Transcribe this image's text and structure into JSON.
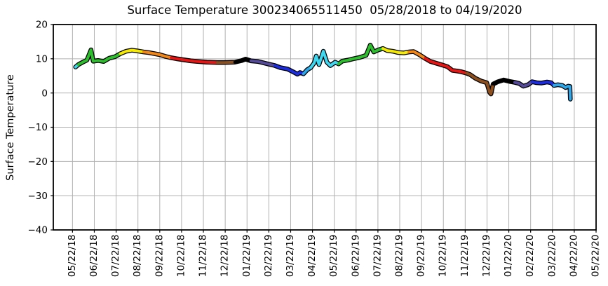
{
  "chart_data": {
    "type": "line",
    "title": "Surface Temperature 300234065511450  05/28/2018 to 04/19/2020",
    "ylabel": "Surface Temperature",
    "xlabel": "",
    "ylim": [
      -40,
      20
    ],
    "xlim_months": [
      -0.88,
      24
    ],
    "grid": true,
    "grid_color": "#b0b0b0",
    "y_tick_values": [
      20,
      10,
      0,
      -10,
      -20,
      -30,
      -40
    ],
    "y_tick_labels": [
      "20",
      "10",
      "0",
      "−10",
      "−20",
      "−30",
      "−40"
    ],
    "x_tick_labels": [
      "05/22/18",
      "06/22/18",
      "07/22/18",
      "08/22/18",
      "09/22/18",
      "10/22/18",
      "11/22/18",
      "12/22/18",
      "01/22/19",
      "02/22/19",
      "03/22/19",
      "04/22/19",
      "05/22/19",
      "06/22/19",
      "07/22/19",
      "08/22/19",
      "09/22/19",
      "10/22/19",
      "11/22/19",
      "12/22/19",
      "01/22/20",
      "02/22/20",
      "03/22/20",
      "04/22/20",
      "05/22/20"
    ],
    "x_unit": "months since 05/22/2018",
    "palette": [
      {
        "name": "cyan",
        "hex": "#3fd6ef"
      },
      {
        "name": "green",
        "hex": "#2dbf2d"
      },
      {
        "name": "yellow",
        "hex": "#f5ea00"
      },
      {
        "name": "orange",
        "hex": "#f28718"
      },
      {
        "name": "red",
        "hex": "#e81515"
      },
      {
        "name": "brown",
        "hex": "#8c4f1d"
      },
      {
        "name": "black",
        "hex": "#000000"
      },
      {
        "name": "dark-slate-blue",
        "hex": "#554a99"
      },
      {
        "name": "blue",
        "hex": "#1c2de0"
      },
      {
        "name": "sky-blue",
        "hex": "#2da7e8"
      }
    ],
    "series": [
      {
        "name": "surface-temperature",
        "outline_color": "#000000",
        "points": [
          [
            0.14,
            7.6,
            0
          ],
          [
            0.27,
            8.3,
            0
          ],
          [
            0.47,
            9.0,
            1
          ],
          [
            0.66,
            9.6,
            1
          ],
          [
            0.85,
            12.6,
            1
          ],
          [
            0.95,
            9.3,
            1
          ],
          [
            1.17,
            9.5,
            1
          ],
          [
            1.43,
            9.2,
            1
          ],
          [
            1.69,
            10.2,
            1
          ],
          [
            1.95,
            10.6,
            1
          ],
          [
            2.2,
            11.5,
            1
          ],
          [
            2.46,
            12.2,
            2
          ],
          [
            2.72,
            12.5,
            2
          ],
          [
            2.97,
            12.3,
            2
          ],
          [
            3.26,
            12.0,
            2
          ],
          [
            3.49,
            11.8,
            3
          ],
          [
            3.75,
            11.5,
            3
          ],
          [
            4.0,
            11.2,
            3
          ],
          [
            4.26,
            10.7,
            3
          ],
          [
            4.52,
            10.3,
            3
          ],
          [
            4.77,
            10.0,
            4
          ],
          [
            5.1,
            9.7,
            4
          ],
          [
            5.42,
            9.4,
            4
          ],
          [
            5.74,
            9.2,
            4
          ],
          [
            6.16,
            9.0,
            4
          ],
          [
            6.64,
            8.9,
            4
          ],
          [
            6.96,
            8.9,
            5
          ],
          [
            7.44,
            9.0,
            5
          ],
          [
            7.77,
            9.5,
            6
          ],
          [
            7.93,
            9.9,
            6
          ],
          [
            8.18,
            9.4,
            6
          ],
          [
            8.5,
            9.2,
            7
          ],
          [
            8.89,
            8.6,
            7
          ],
          [
            9.28,
            8.0,
            7
          ],
          [
            9.53,
            7.4,
            8
          ],
          [
            9.86,
            7.0,
            8
          ],
          [
            10.11,
            6.2,
            8
          ],
          [
            10.31,
            5.5,
            8
          ],
          [
            10.43,
            6.0,
            8
          ],
          [
            10.59,
            5.6,
            8
          ],
          [
            10.76,
            6.8,
            9
          ],
          [
            10.92,
            7.4,
            9
          ],
          [
            11.08,
            8.8,
            0
          ],
          [
            11.17,
            10.8,
            0
          ],
          [
            11.3,
            8.3,
            0
          ],
          [
            11.5,
            12.2,
            0
          ],
          [
            11.66,
            9.0,
            0
          ],
          [
            11.82,
            8.0,
            0
          ],
          [
            12.04,
            9.0,
            0
          ],
          [
            12.2,
            8.5,
            0
          ],
          [
            12.36,
            9.3,
            1
          ],
          [
            12.62,
            9.6,
            1
          ],
          [
            12.88,
            10.0,
            1
          ],
          [
            13.17,
            10.4,
            1
          ],
          [
            13.46,
            11.0,
            1
          ],
          [
            13.65,
            14.0,
            1
          ],
          [
            13.81,
            12.0,
            1
          ],
          [
            14.03,
            12.6,
            1
          ],
          [
            14.23,
            13.0,
            1
          ],
          [
            14.42,
            12.4,
            2
          ],
          [
            14.68,
            12.2,
            2
          ],
          [
            14.94,
            11.8,
            2
          ],
          [
            15.19,
            11.7,
            2
          ],
          [
            15.42,
            12.0,
            2
          ],
          [
            15.64,
            12.1,
            3
          ],
          [
            15.9,
            11.2,
            3
          ],
          [
            16.16,
            10.1,
            3
          ],
          [
            16.41,
            9.2,
            4
          ],
          [
            16.67,
            8.7,
            4
          ],
          [
            16.93,
            8.2,
            4
          ],
          [
            17.19,
            7.7,
            4
          ],
          [
            17.41,
            6.6,
            4
          ],
          [
            17.64,
            6.4,
            4
          ],
          [
            17.83,
            6.2,
            4
          ],
          [
            18.05,
            5.8,
            4
          ],
          [
            18.22,
            5.4,
            5
          ],
          [
            18.47,
            4.3,
            5
          ],
          [
            18.73,
            3.5,
            5
          ],
          [
            18.99,
            3.0,
            5
          ],
          [
            19.12,
            0.2,
            5
          ],
          [
            19.18,
            -0.3,
            5
          ],
          [
            19.28,
            2.6,
            5
          ],
          [
            19.5,
            3.3,
            6
          ],
          [
            19.76,
            3.8,
            6
          ],
          [
            20.02,
            3.4,
            6
          ],
          [
            20.27,
            3.1,
            6
          ],
          [
            20.47,
            2.8,
            7
          ],
          [
            20.66,
            2.0,
            7
          ],
          [
            20.88,
            2.4,
            7
          ],
          [
            21.07,
            3.3,
            7
          ],
          [
            21.27,
            3.0,
            8
          ],
          [
            21.49,
            2.9,
            8
          ],
          [
            21.75,
            3.2,
            8
          ],
          [
            21.94,
            3.0,
            8
          ],
          [
            22.07,
            2.2,
            8
          ],
          [
            22.25,
            2.4,
            9
          ],
          [
            22.45,
            2.2,
            9
          ],
          [
            22.6,
            1.6,
            9
          ],
          [
            22.72,
            2.0,
            9
          ],
          [
            22.8,
            1.9,
            9
          ],
          [
            22.82,
            -1.8,
            9
          ]
        ]
      }
    ]
  }
}
